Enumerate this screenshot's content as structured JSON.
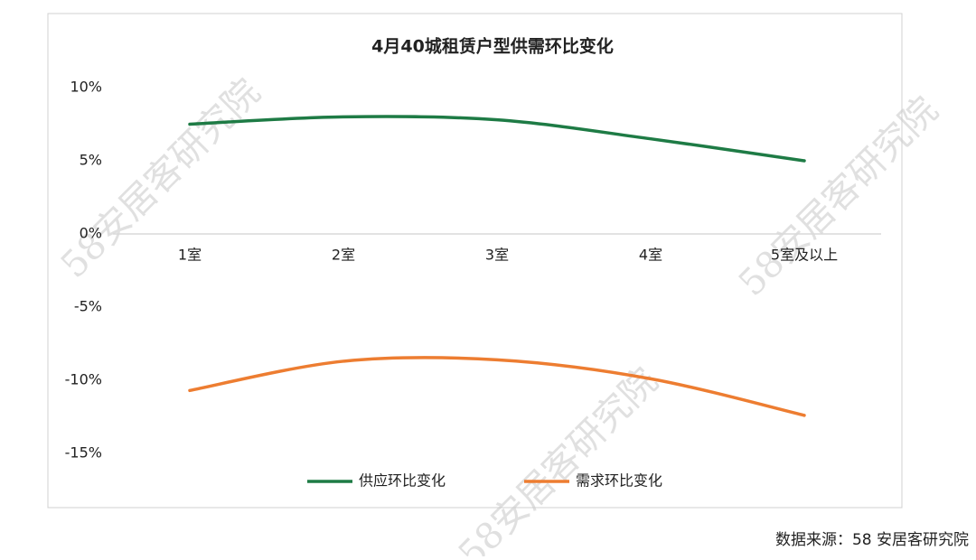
{
  "chart_data": {
    "type": "line",
    "title": "4月40城租赁户型供需环比变化",
    "categories": [
      "1室",
      "2室",
      "3室",
      "4室",
      "5室及以上"
    ],
    "series": [
      {
        "name": "供应环比变化",
        "color": "#1e7b45",
        "values": [
          7.5,
          8.0,
          7.8,
          6.5,
          5.0
        ]
      },
      {
        "name": "需求环比变化",
        "color": "#ed7d31",
        "values": [
          -10.7,
          -8.7,
          -8.6,
          -9.9,
          -12.4
        ]
      }
    ],
    "ylim": [
      -15,
      10
    ],
    "yticks": [
      {
        "value": 10,
        "label": "10%"
      },
      {
        "value": 5,
        "label": "5%"
      },
      {
        "value": 0,
        "label": "0%"
      },
      {
        "value": -5,
        "label": "-5%"
      },
      {
        "value": -10,
        "label": "-10%"
      },
      {
        "value": -15,
        "label": "-15%"
      }
    ],
    "smooth": true,
    "source": "数据来源：58 安居客研究院",
    "watermark": "58安居客研究院"
  }
}
